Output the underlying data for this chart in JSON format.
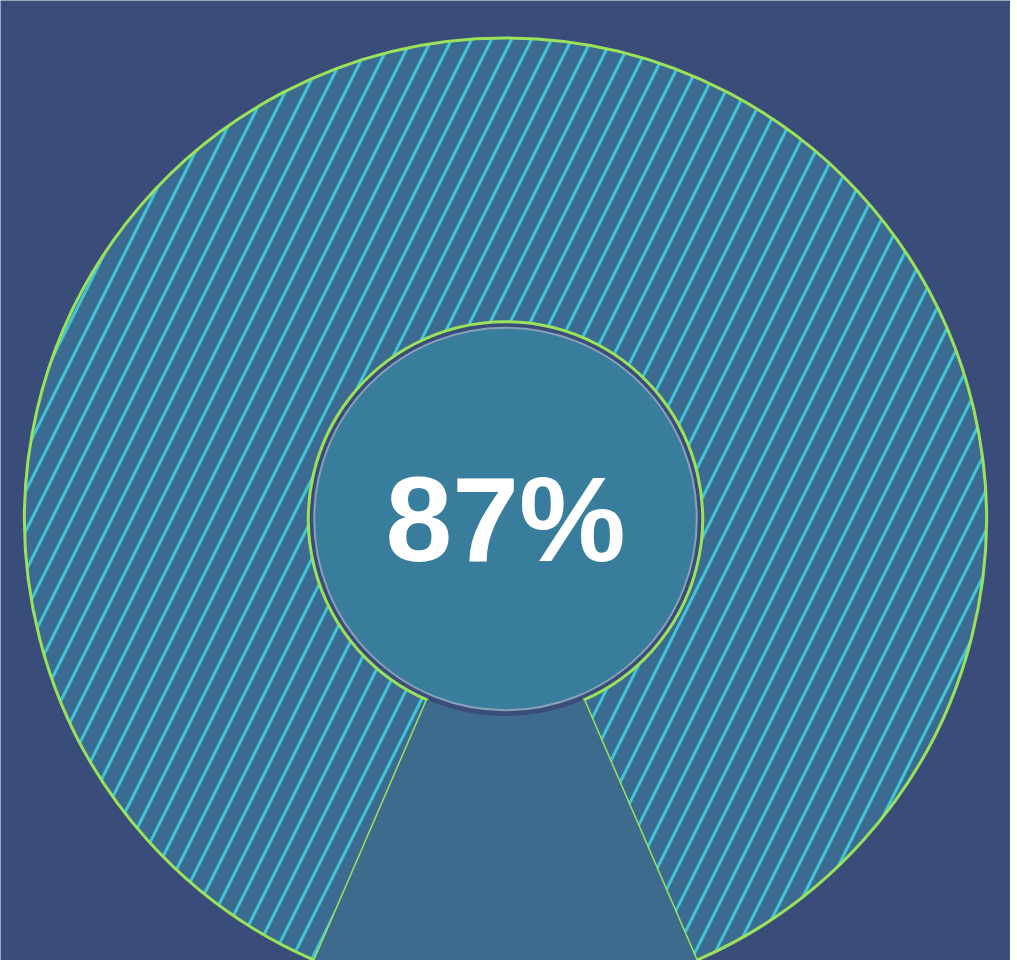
{
  "chart_data": {
    "type": "donut",
    "categories": [
      null,
      null
    ],
    "values": [
      87,
      13
    ],
    "colors": [
      "#3ec6d6",
      "#3e6a8e"
    ],
    "value_labels": [
      "87%",
      null
    ]
  }
}
